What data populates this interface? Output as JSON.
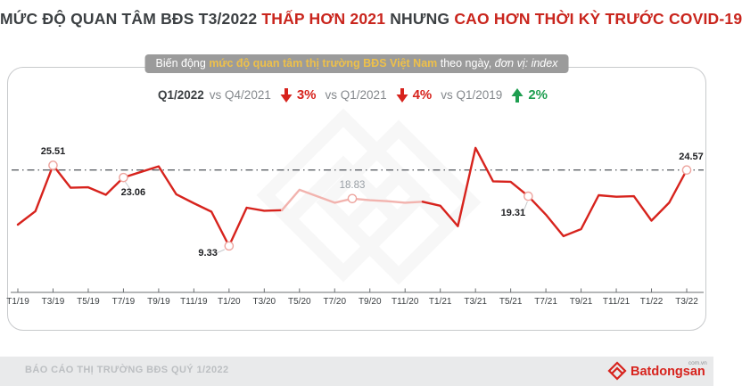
{
  "title": {
    "part1": "MỨC ĐỘ QUAN TÂM BĐS T3/2022 ",
    "part2_red": "THẤP HƠN 2021",
    "part3": " NHƯNG ",
    "part4_red": "CAO HƠN THỜI KỲ TRƯỚC COVID-19"
  },
  "banner": {
    "prefix": "Biến động ",
    "highlight": "mức độ quan tâm thị trường BĐS Việt Nam",
    "middle": " theo ngày, ",
    "unit_note": "đơn vị: index"
  },
  "stats": {
    "base_label": "Q1/2022",
    "comparisons": [
      {
        "vs": "vs Q4/2021",
        "direction": "down",
        "value": "3%"
      },
      {
        "vs": "vs Q1/2021",
        "direction": "down",
        "value": "4%"
      },
      {
        "vs": "vs Q1/2019",
        "direction": "up",
        "value": "2%"
      }
    ]
  },
  "chart_data": {
    "type": "line",
    "title": "Biến động mức độ quan tâm thị trường BĐS Việt Nam theo ngày",
    "unit": "index",
    "categories": [
      "T1/19",
      "T2/19",
      "T3/19",
      "T4/19",
      "T5/19",
      "T6/19",
      "T7/19",
      "T8/19",
      "T9/19",
      "T10/19",
      "T11/19",
      "T12/19",
      "T1/20",
      "T2/20",
      "T3/20",
      "T4/20",
      "T5/20",
      "T6/20",
      "T7/20",
      "T8/20",
      "T9/20",
      "T10/20",
      "T11/20",
      "T12/20",
      "T1/21",
      "T2/21",
      "T3/21",
      "T4/21",
      "T5/21",
      "T6/21",
      "T7/21",
      "T8/21",
      "T9/21",
      "T10/21",
      "T11/21",
      "T12/21",
      "T1/22",
      "T2/22",
      "T3/22"
    ],
    "x_tick_labels": [
      "T1/19",
      "T3/19",
      "T5/19",
      "T7/19",
      "T9/19",
      "T11/19",
      "T1/20",
      "T3/20",
      "T5/20",
      "T7/20",
      "T9/20",
      "T11/20",
      "T1/21",
      "T3/21",
      "T5/21",
      "T7/21",
      "T9/21",
      "T11/21",
      "T1/22",
      "T3/22"
    ],
    "series": [
      {
        "name": "Mức độ quan tâm BĐS Việt Nam",
        "values": [
          13.6,
          16.3,
          25.51,
          21.0,
          21.1,
          19.6,
          23.06,
          24.2,
          25.3,
          19.7,
          17.9,
          16.2,
          9.33,
          17.0,
          16.4,
          16.5,
          20.6,
          19.3,
          18.0,
          18.83,
          18.5,
          18.3,
          18.0,
          18.2,
          17.4,
          13.3,
          29.0,
          22.3,
          22.2,
          19.31,
          15.6,
          11.3,
          12.7,
          19.5,
          19.2,
          19.3,
          14.4,
          18.0,
          24.57
        ]
      }
    ],
    "labeled_points": [
      {
        "index": 2,
        "label": "25.51",
        "pos": "above"
      },
      {
        "index": 6,
        "label": "23.06",
        "pos": "below-right",
        "leader": true
      },
      {
        "index": 12,
        "label": "9.33",
        "pos": "left",
        "leader": true
      },
      {
        "index": 19,
        "label": "18.83",
        "pos": "above",
        "muted": true
      },
      {
        "index": 29,
        "label": "19.31",
        "pos": "below-left",
        "leader": true
      },
      {
        "index": 38,
        "label": "24.57",
        "pos": "above",
        "dx": 5
      }
    ],
    "reference_line": {
      "value": 24.57,
      "style": "dash-dot"
    },
    "faded_segment": {
      "start_index": 15,
      "end_index": 23
    },
    "ylim": [
      0,
      30
    ],
    "grid": false,
    "legend": false
  },
  "footer": {
    "report_label": "BÁO CÁO THỊ TRƯỜNG BĐS QUÝ 1/2022",
    "brand": "Batdongsan",
    "brand_suffix": "com.vn"
  },
  "colors": {
    "line_red": "#d7231d",
    "line_faded": "#f2b3ae",
    "marker_stroke": "#eda49e",
    "title_red": "#c9251d",
    "green": "#1e9e50",
    "banner_bg": "#9b9b9b",
    "banner_highlight": "#eec04a",
    "ref_line": "#5f6368",
    "axis": "#6b6f72"
  }
}
